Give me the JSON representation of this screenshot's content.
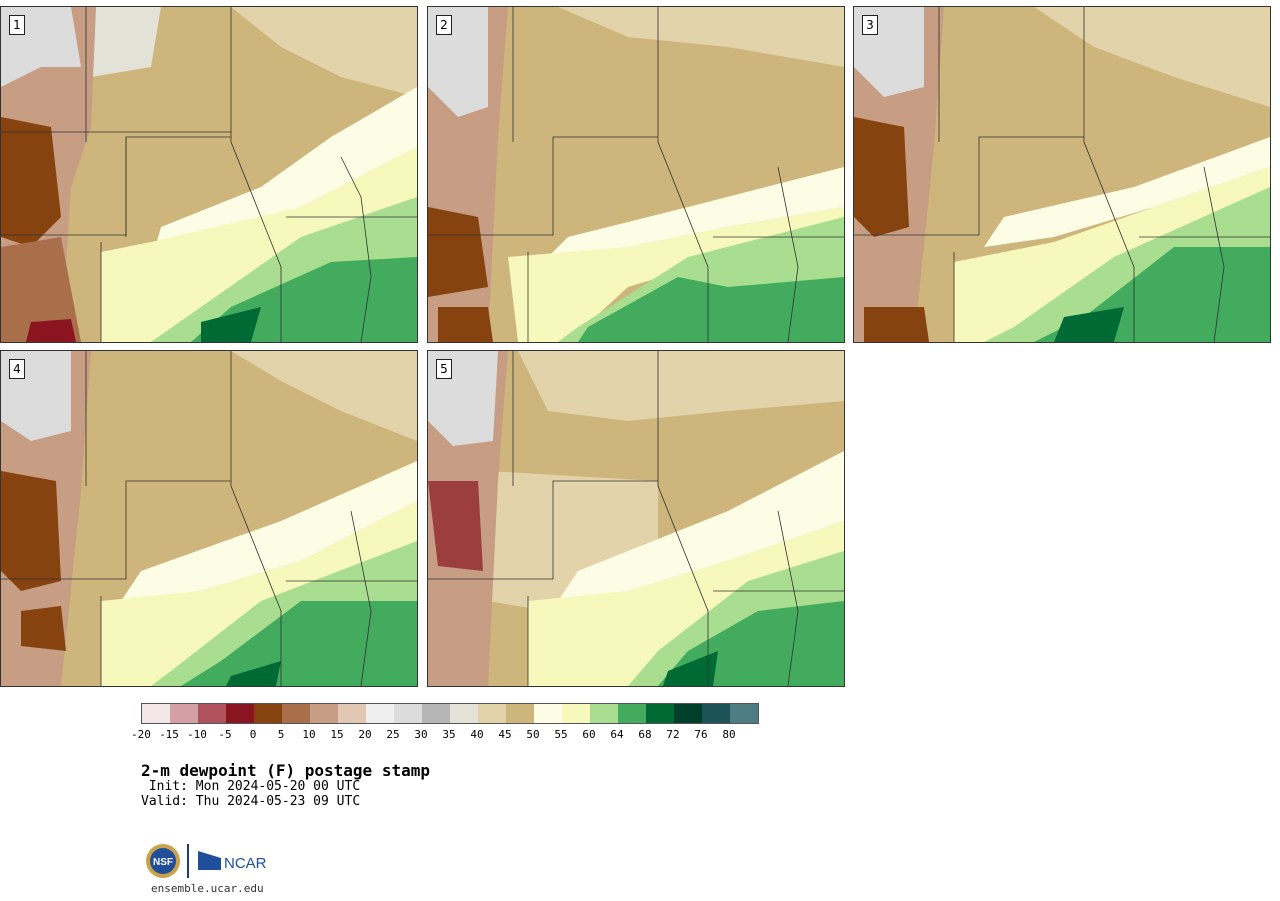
{
  "panels": [
    {
      "label": "1"
    },
    {
      "label": "2"
    },
    {
      "label": "3"
    },
    {
      "label": "4"
    },
    {
      "label": "5"
    }
  ],
  "colorbar": {
    "colors": [
      "#f3e6e8",
      "#d4a0a6",
      "#b0525c",
      "#8a1520",
      "#86420f",
      "#a86f4a",
      "#c79d83",
      "#e2c7b4",
      "#efefef",
      "#dcdcdc",
      "#b6b6b6",
      "#e2e2d6",
      "#e2d3aa",
      "#cdb57c",
      "#fdfde6",
      "#f7f9bc",
      "#a9dd8f",
      "#42ab5d",
      "#006a35",
      "#00402a",
      "#1d5358",
      "#4e7c83"
    ],
    "tick_labels": [
      "-20",
      "-15",
      "-10",
      "-5",
      "0",
      "5",
      "10",
      "15",
      "20",
      "25",
      "30",
      "35",
      "40",
      "45",
      "50",
      "55",
      "60",
      "64",
      "68",
      "72",
      "76",
      "80"
    ]
  },
  "title": "2-m dewpoint (F) postage stamp",
  "init_line": " Init: Mon 2024-05-20 00 UTC",
  "valid_line": "Valid: Thu 2024-05-23 09 UTC",
  "logos": {
    "nsf": "NSF",
    "ncar": "NCAR"
  },
  "site": "ensemble.ucar.edu"
}
